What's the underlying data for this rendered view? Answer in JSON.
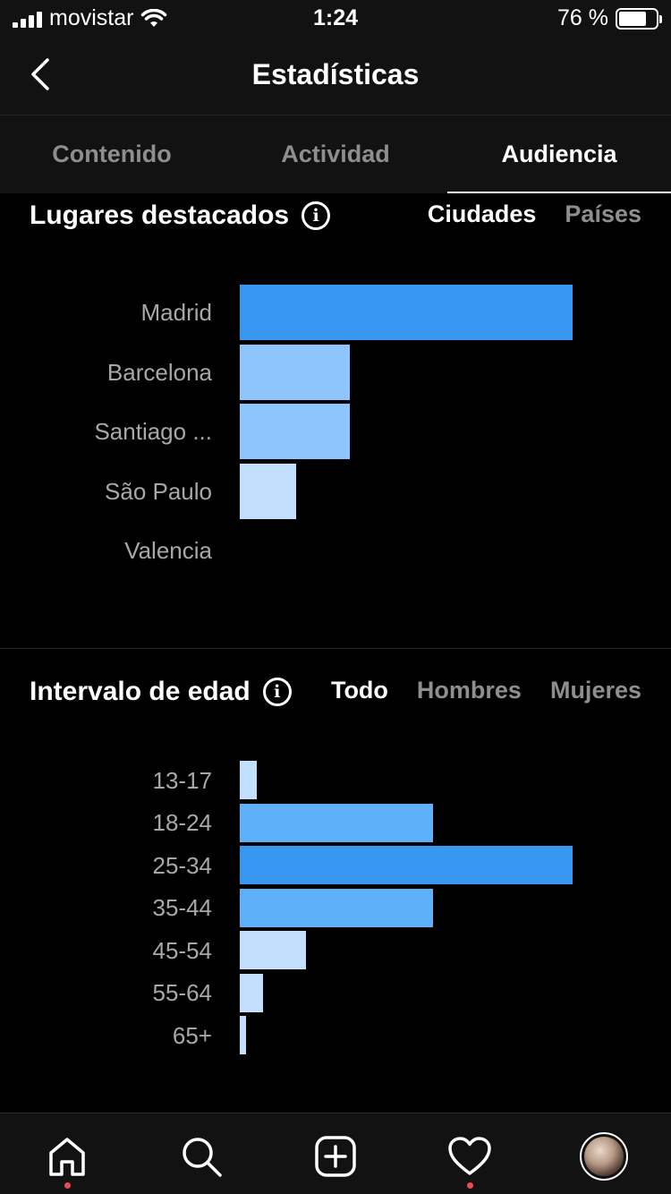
{
  "status_bar": {
    "carrier": "movistar",
    "time": "1:24",
    "battery": "76 %"
  },
  "header": {
    "title": "Estadísticas"
  },
  "tabs": [
    {
      "label": "Contenido",
      "active": false
    },
    {
      "label": "Actividad",
      "active": false
    },
    {
      "label": "Audiencia",
      "active": true
    }
  ],
  "places": {
    "title": "Lugares destacados",
    "filters": [
      {
        "label": "Ciudades",
        "active": true
      },
      {
        "label": "Países",
        "active": false
      }
    ],
    "chart_data": {
      "type": "bar",
      "orientation": "horizontal",
      "categories": [
        "Madrid",
        "Barcelona",
        "Santiago ...",
        "São Paulo",
        "Valencia"
      ],
      "values": [
        100,
        33,
        33,
        17,
        0
      ],
      "colors": [
        "#3897f0",
        "#8ec5fc",
        "#8ec5fc",
        "#c2e0fd",
        "#c2e0fd"
      ]
    }
  },
  "age": {
    "title": "Intervalo de edad",
    "filters": [
      {
        "label": "Todo",
        "active": true
      },
      {
        "label": "Hombres",
        "active": false
      },
      {
        "label": "Mujeres",
        "active": false
      }
    ],
    "chart_data": {
      "type": "bar",
      "orientation": "horizontal",
      "categories": [
        "13-17",
        "18-24",
        "25-34",
        "35-44",
        "45-54",
        "55-64",
        "65+"
      ],
      "values": [
        5,
        58,
        100,
        58,
        20,
        7,
        2
      ],
      "colors": [
        "#c2e0fd",
        "#5eb0fb",
        "#3897f0",
        "#5eb0fb",
        "#c2e0fd",
        "#c2e0fd",
        "#c2e0fd"
      ]
    }
  },
  "nav": [
    "home-icon",
    "search-icon",
    "add-icon",
    "heart-icon",
    "profile-avatar"
  ]
}
